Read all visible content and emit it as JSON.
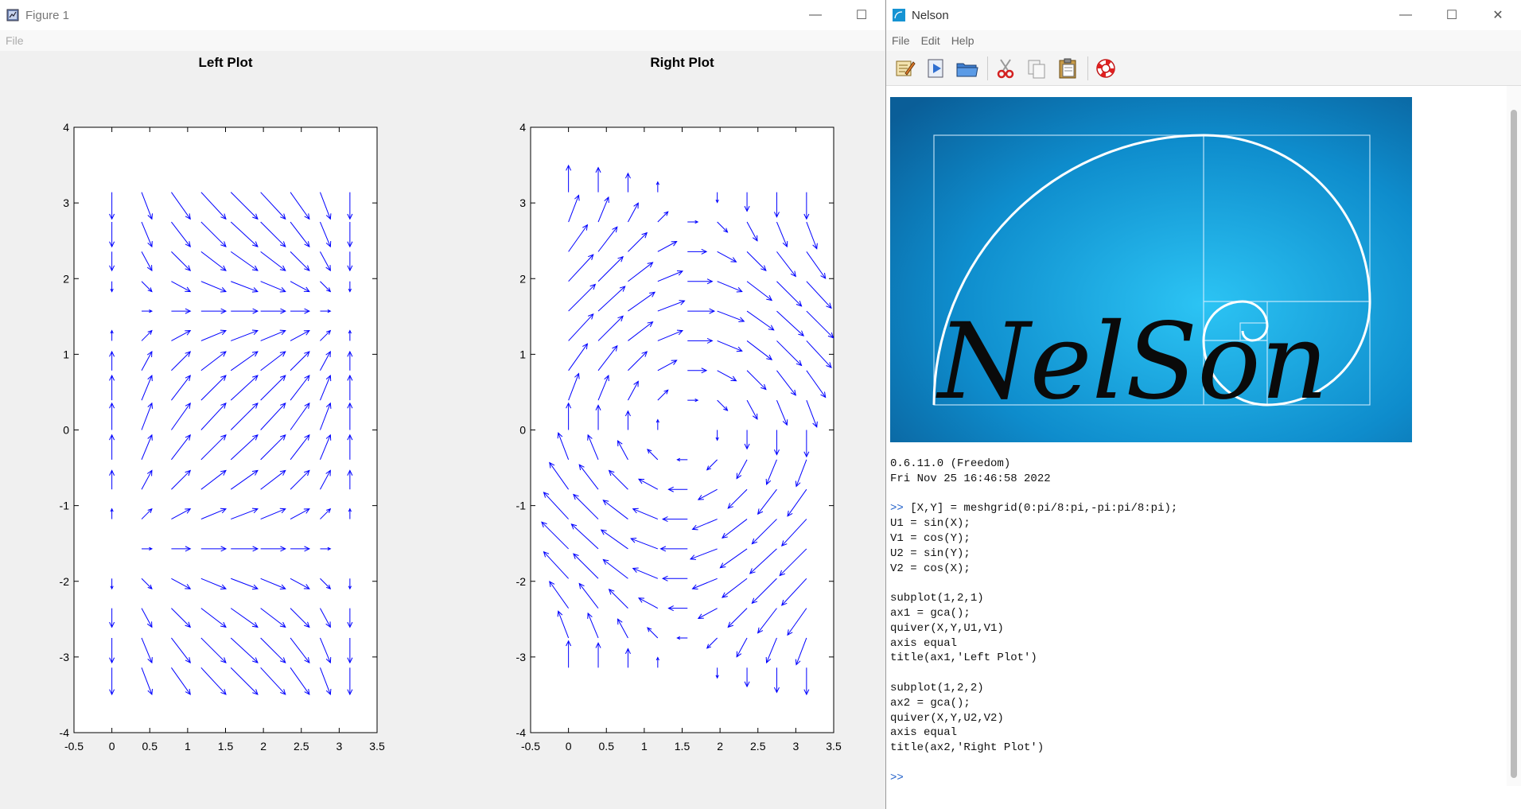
{
  "figure_window": {
    "title": "Figure 1",
    "menu": [
      "File"
    ],
    "controls": {
      "minimize": "—",
      "maximize": "☐"
    }
  },
  "nelson_window": {
    "title": "Nelson",
    "menu": [
      "File",
      "Edit",
      "Help"
    ],
    "controls": {
      "minimize": "—",
      "maximize": "☐",
      "close": "✕"
    },
    "toolbar_icons": [
      "edit-icon",
      "run-icon",
      "open-folder-icon",
      "cut-icon",
      "copy-icon",
      "paste-icon",
      "help-lifebuoy-icon"
    ],
    "banner_text": "NelSon",
    "console": {
      "version": "0.6.11.0 (Freedom)",
      "date": "Fri Nov 25 16:46:58 2022",
      "prompt": ">>",
      "command_first": " [X,Y] = meshgrid(0:pi/8:pi,-pi:pi/8:pi);",
      "command_rest": [
        "U1 = sin(X);",
        "V1 = cos(Y);",
        "U2 = sin(Y);",
        "V2 = cos(X);",
        "",
        "subplot(1,2,1)",
        "ax1 = gca();",
        "quiver(X,Y,U1,V1)",
        "axis equal",
        "title(ax1,'Left Plot')",
        "",
        "subplot(1,2,2)",
        "ax2 = gca();",
        "quiver(X,Y,U2,V2)",
        "axis equal",
        "title(ax2,'Right Plot')"
      ]
    }
  },
  "chart_data": [
    {
      "type": "quiver",
      "title": "Left Plot",
      "x": "0:pi/8:pi",
      "y": "-pi:pi/8:pi",
      "u": "sin(X)",
      "v": "cos(Y)",
      "xlim": [
        -0.5,
        3.5
      ],
      "ylim": [
        -4,
        4
      ],
      "xticks": [
        "-0.5",
        "0",
        "0.5",
        "1",
        "1.5",
        "2",
        "2.5",
        "3",
        "3.5"
      ],
      "yticks": [
        "4",
        "3",
        "2",
        "1",
        "0",
        "-1",
        "-2",
        "-3",
        "-4"
      ],
      "color": "#0000ff",
      "grid": false
    },
    {
      "type": "quiver",
      "title": "Right Plot",
      "x": "0:pi/8:pi",
      "y": "-pi:pi/8:pi",
      "u": "sin(Y)",
      "v": "cos(X)",
      "xlim": [
        -0.5,
        3.5
      ],
      "ylim": [
        -4,
        4
      ],
      "xticks": [
        "-0.5",
        "0",
        "0.5",
        "1",
        "1.5",
        "2",
        "2.5",
        "3",
        "3.5"
      ],
      "yticks": [
        "4",
        "3",
        "2",
        "1",
        "0",
        "-1",
        "-2",
        "-3",
        "-4"
      ],
      "color": "#0000ff",
      "grid": false
    }
  ]
}
